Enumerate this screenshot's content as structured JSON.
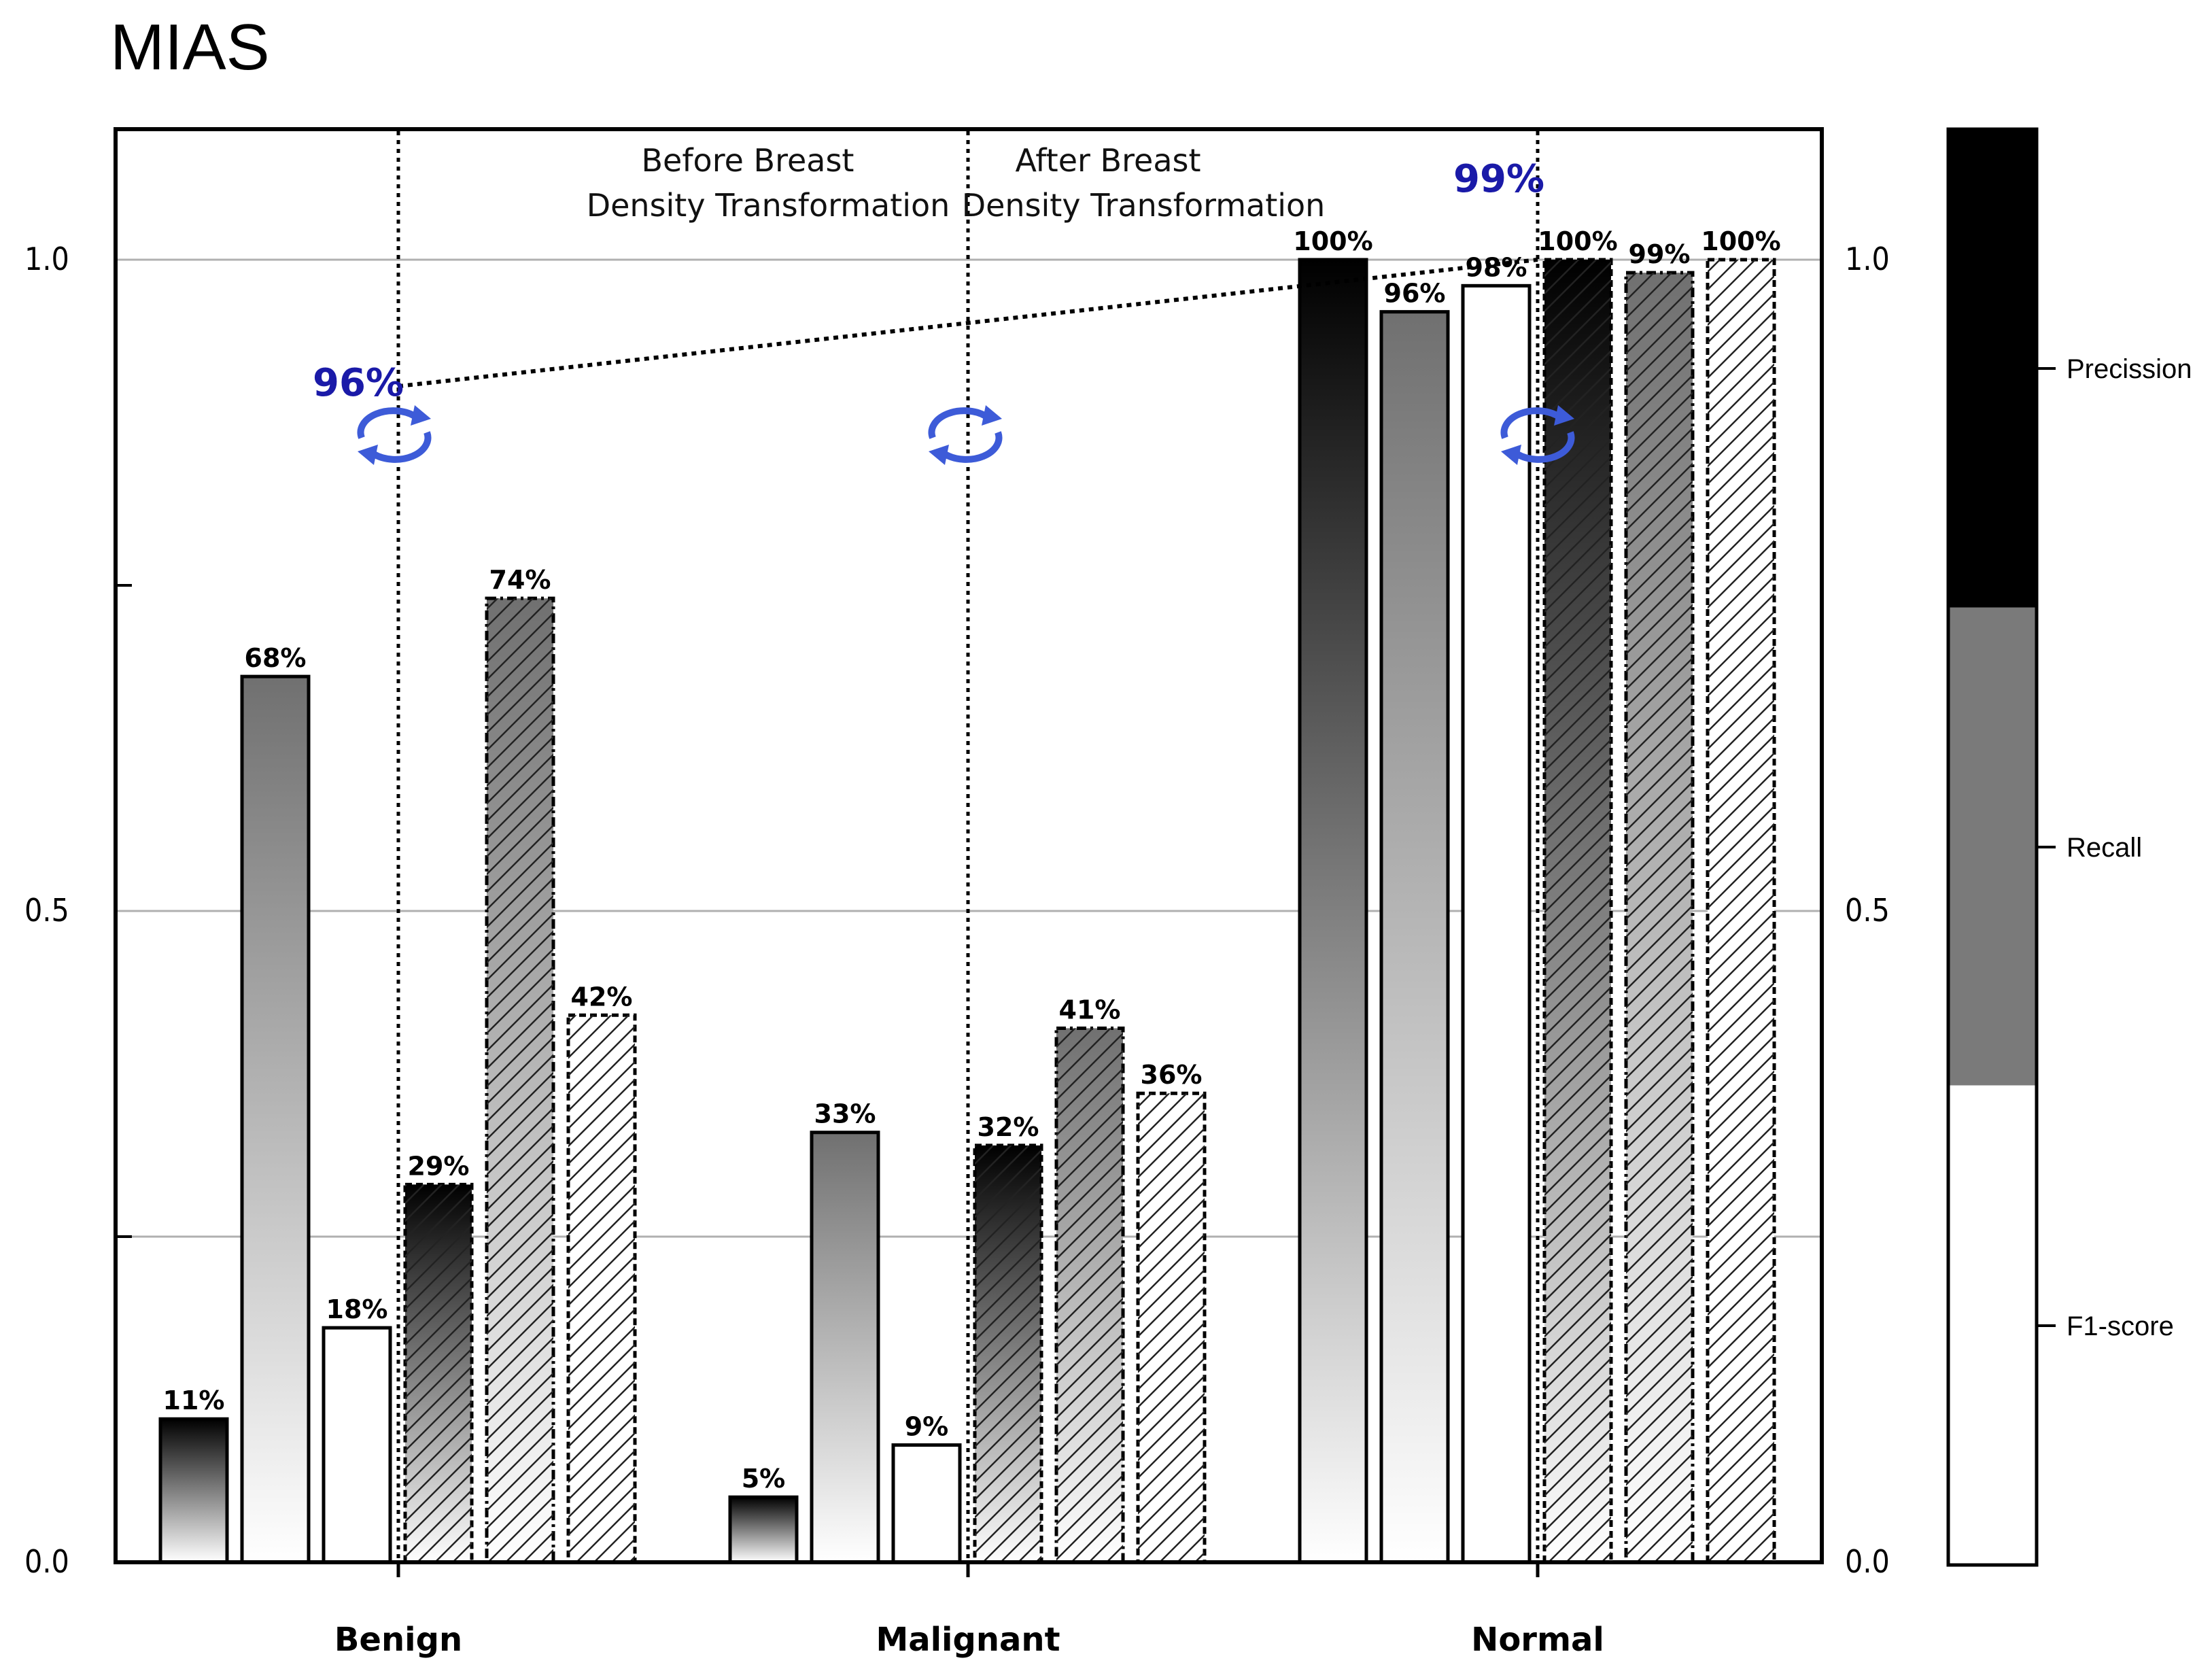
{
  "chart_data": {
    "type": "bar",
    "title": "MIAS",
    "categories": [
      "Benign",
      "Malignant",
      "Normal"
    ],
    "ylim": [
      0,
      1.1
    ],
    "y_ticks": [
      "0.0",
      "0.5",
      "1.0"
    ],
    "right_y_ticks": [
      "0.0",
      "0.5",
      "1.0"
    ],
    "grid": true,
    "phases": [
      {
        "name": "Before Breast Density Transformation",
        "line1": "Before Breast",
        "line2": "Density Transformation"
      },
      {
        "name": "After Breast Density Transformation",
        "line1": "After Breast",
        "line2": "Density Transformation"
      }
    ],
    "series": [
      {
        "name": "Precission",
        "phase": "before",
        "values": [
          0.11,
          0.05,
          1.0
        ],
        "labels": [
          "11%",
          "5%",
          "100%"
        ]
      },
      {
        "name": "Recall",
        "phase": "before",
        "values": [
          0.68,
          0.33,
          0.96
        ],
        "labels": [
          "68%",
          "33%",
          "96%"
        ]
      },
      {
        "name": "F1-score",
        "phase": "before",
        "values": [
          0.18,
          0.09,
          0.98
        ],
        "labels": [
          "18%",
          "9%",
          "98%"
        ]
      },
      {
        "name": "Precission",
        "phase": "after",
        "values": [
          0.29,
          0.32,
          1.0
        ],
        "labels": [
          "29%",
          "32%",
          "100%"
        ]
      },
      {
        "name": "Recall",
        "phase": "after",
        "values": [
          0.74,
          0.41,
          0.99
        ],
        "labels": [
          "74%",
          "41%",
          "99%"
        ]
      },
      {
        "name": "F1-score",
        "phase": "after",
        "values": [
          0.42,
          0.36,
          1.0
        ],
        "labels": [
          "42%",
          "36%",
          "100%"
        ]
      }
    ],
    "accuracy_annotations": [
      {
        "label": "96%",
        "value": 0.93
      },
      {
        "label": "99%",
        "value": 1.0
      }
    ],
    "legend": {
      "placement": "right",
      "entries": [
        "Precission",
        "Recall",
        "F1-score"
      ]
    },
    "colors": {
      "precision": "#000000",
      "recall": "#7a7a7a",
      "f1": "#ffffff",
      "accent": "#1a1aa8",
      "swap_icon": "#3d5bd8"
    }
  }
}
